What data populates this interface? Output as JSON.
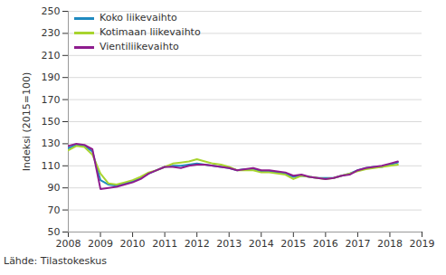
{
  "chart_data": {
    "type": "line",
    "y_label": "Indeksi (2015=100)",
    "caption": "Lähde: Tilastokeskus",
    "x": [
      2008,
      2008.25,
      2008.5,
      2008.75,
      2009,
      2009.25,
      2009.5,
      2009.75,
      2010,
      2010.25,
      2010.5,
      2010.75,
      2011,
      2011.25,
      2011.5,
      2011.75,
      2012,
      2012.25,
      2012.5,
      2012.75,
      2013,
      2013.25,
      2013.5,
      2013.75,
      2014,
      2014.25,
      2014.5,
      2014.75,
      2015,
      2015.25,
      2015.5,
      2015.75,
      2016,
      2016.25,
      2016.5,
      2016.75,
      2017,
      2017.25,
      2017.5,
      2017.75,
      2018,
      2018.25
    ],
    "series": [
      {
        "name": "Koko liikevaihto",
        "color": "#1f8ac0",
        "values": [
          126,
          129,
          128,
          123,
          97,
          93,
          92,
          94,
          96,
          99,
          103,
          106,
          109,
          110,
          110,
          111,
          112,
          111,
          110,
          109,
          108,
          106,
          107,
          107,
          105,
          105,
          104,
          103,
          100,
          101,
          100,
          99,
          99,
          99,
          101,
          103,
          106,
          108,
          109,
          109,
          111,
          113
        ]
      },
      {
        "name": "Kotimaan liikevaihto",
        "color": "#a8d42e",
        "values": [
          124,
          128,
          127,
          120,
          103,
          94,
          93,
          95,
          97,
          100,
          104,
          106,
          109,
          112,
          113,
          114,
          116,
          114,
          112,
          111,
          109,
          106,
          106,
          106,
          104,
          104,
          103,
          102,
          98,
          101,
          100,
          99,
          98,
          99,
          101,
          103,
          105,
          107,
          108,
          109,
          110,
          111
        ]
      },
      {
        "name": "Vientiliikevaihto",
        "color": "#8e1c8e",
        "values": [
          128,
          130,
          129,
          125,
          89,
          90,
          91,
          93,
          95,
          98,
          103,
          106,
          109,
          109,
          108,
          110,
          111,
          111,
          110,
          109,
          108,
          106,
          107,
          108,
          106,
          106,
          105,
          104,
          101,
          102,
          100,
          99,
          98,
          99,
          101,
          102,
          106,
          108,
          109,
          110,
          112,
          114
        ]
      }
    ],
    "xlim": [
      2008,
      2019
    ],
    "xticks": [
      2008,
      2009,
      2010,
      2011,
      2012,
      2013,
      2014,
      2015,
      2016,
      2017,
      2018,
      2019
    ],
    "ylim": [
      50,
      250
    ],
    "yticks": [
      50,
      70,
      90,
      110,
      130,
      150,
      170,
      190,
      210,
      230,
      250
    ],
    "grid": true,
    "legend": "top-left"
  }
}
